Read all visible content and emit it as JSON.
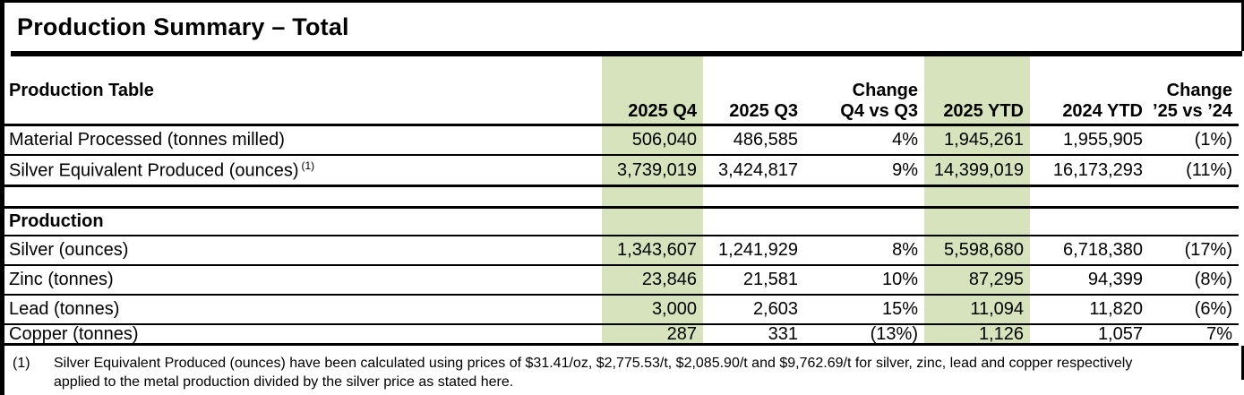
{
  "title": "Production Summary – Total",
  "colors": {
    "highlight": "#d6e3bc",
    "line": "#000000"
  },
  "table": {
    "corner_header": "Production Table",
    "columns": [
      {
        "line1": "",
        "line2": "2025 Q4",
        "highlight": true
      },
      {
        "line1": "",
        "line2": "2025 Q3",
        "highlight": false
      },
      {
        "line1": "Change",
        "line2": "Q4 vs Q3",
        "highlight": false
      },
      {
        "line1": "",
        "line2": "2025 YTD",
        "highlight": true
      },
      {
        "line1": "",
        "line2": "2024 YTD",
        "highlight": false
      },
      {
        "line1": "Change",
        "line2": "’25 vs ’24",
        "highlight": false
      }
    ],
    "rows": [
      {
        "label": "Material Processed (tonnes milled)",
        "values": [
          "506,040",
          "486,585",
          "4%",
          "1,945,261",
          "1,955,905",
          "(1%)"
        ]
      },
      {
        "label": "Silver Equivalent Produced (ounces)",
        "label_superscript": "(1)",
        "values": [
          "3,739,019",
          "3,424,817",
          "9%",
          "14,399,019",
          "16,173,293",
          "(11%)"
        ]
      },
      {
        "label": "",
        "values": [
          "",
          "",
          "",
          "",
          "",
          ""
        ]
      },
      {
        "label": "Production",
        "section_header": true,
        "values": [
          "",
          "",
          "",
          "",
          "",
          ""
        ]
      },
      {
        "label": "Silver (ounces)",
        "values": [
          "1,343,607",
          "1,241,929",
          "8%",
          "5,598,680",
          "6,718,380",
          "(17%)"
        ]
      },
      {
        "label": "Zinc (tonnes)",
        "values": [
          "23,846",
          "21,581",
          "10%",
          "87,295",
          "94,399",
          "(8%)"
        ]
      },
      {
        "label": "Lead (tonnes)",
        "values": [
          "3,000",
          "2,603",
          "15%",
          "11,094",
          "11,820",
          "(6%)"
        ]
      },
      {
        "label": "Copper (tonnes)",
        "values": [
          "287",
          "331",
          "(13%)",
          "1,126",
          "1,057",
          "7%"
        ]
      }
    ]
  },
  "footnote": {
    "marker": "(1)",
    "line1": "Silver Equivalent Produced (ounces) have been calculated using prices of $31.41/oz, $2,775.53/t, $2,085.90/t and $9,762.69/t for silver, zinc, lead and copper respectively",
    "line2": "applied to the metal production divided by the silver price as stated here."
  }
}
